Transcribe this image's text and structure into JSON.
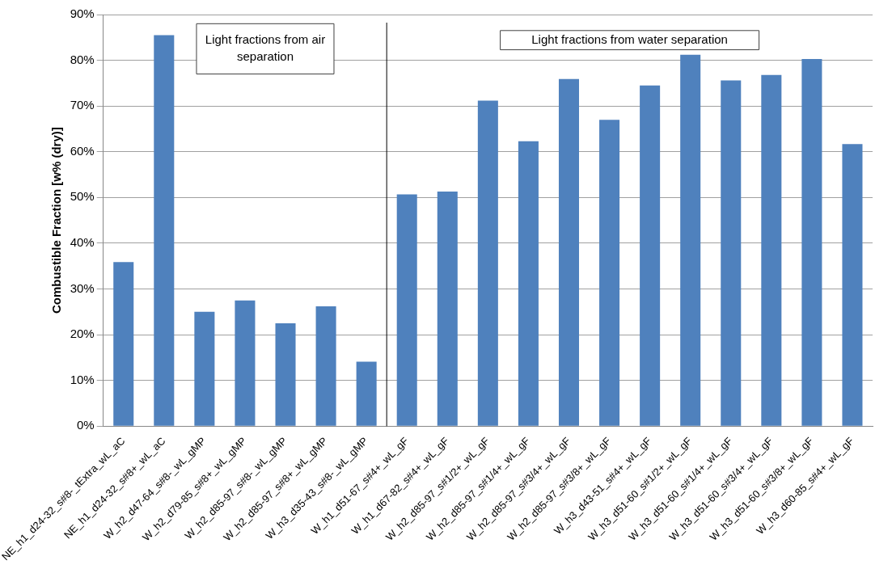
{
  "chart_data": {
    "type": "bar",
    "ylabel": "Combustible Fraction [w% (dry)]",
    "categories": [
      "NE_h1_d24-32_s#8-_tExtra_wL_aC",
      "NE_h1_d24-32_s#8+_wL_aC",
      "W_h2_d47-64_s#8-_wL_gMP",
      "W_h2_d79-85_s#8+_wL_gMP",
      "W_h2_d85-97_s#8-_wL_gMP",
      "W_h2_d85-97_s#8+_wL_gMP",
      "W_h3_d35-43_s#8-_wL_gMP",
      "W_h1_d51-67_s#4+_wL_gF",
      "W_h1_d67-82_s#4+_wL_gF",
      "W_h2_d85-97_s#1/2+_wL_gF",
      "W_h2_d85-97_s#1/4+_wL_gF",
      "W_h2_d85-97_s#3/4+_wL_gF",
      "W_h2_d85-97_s#3/8+_wL_gF",
      "W_h3_d43-51_s#4+_wL_gF",
      "W_h3_d51-60_s#1/2+_wL_gF",
      "W_h3_d51-60_s#1/4+_wL_gF",
      "W_h3_d51-60_s#3/4+_wL_gF",
      "W_h3_d51-60_s#3/8+_wL_gF",
      "W_h3_d60-85_s#4+_wL_gF"
    ],
    "values": [
      35.9,
      85.5,
      25.0,
      27.5,
      22.5,
      26.2,
      14.1,
      50.7,
      51.3,
      71.2,
      62.3,
      75.9,
      67.0,
      74.5,
      81.2,
      75.6,
      76.8,
      80.3,
      61.7
    ],
    "color": "#4f81bd",
    "ylim": [
      0,
      90
    ],
    "yticks": [
      {
        "value": 0,
        "label": "0%"
      },
      {
        "value": 10,
        "label": "10%"
      },
      {
        "value": 20,
        "label": "20%"
      },
      {
        "value": 30,
        "label": "30%"
      },
      {
        "value": 40,
        "label": "40%"
      },
      {
        "value": 50,
        "label": "50%"
      },
      {
        "value": 60,
        "label": "60%"
      },
      {
        "value": 70,
        "label": "70%"
      },
      {
        "value": 80,
        "label": "80%"
      },
      {
        "value": 90,
        "label": "90%"
      }
    ],
    "grid": "y",
    "ref_lines": [
      {
        "axis": "x",
        "value": "W_h1_d51-67_s#4+_wL_gF",
        "color": "#000000"
      }
    ],
    "legend": false,
    "annotations": [
      "Light fractions from air separation",
      "Light fractions from water separation"
    ]
  }
}
